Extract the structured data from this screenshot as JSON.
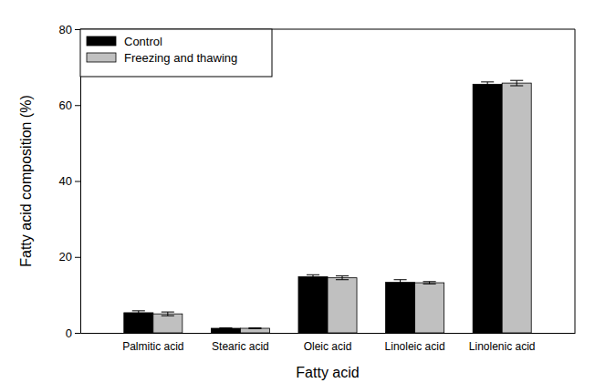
{
  "chart_data": {
    "type": "bar",
    "x_label": "Fatty acid",
    "y_label": "Fatty acid composition (%)",
    "categories": [
      "Palmitic acid",
      "Stearic acid",
      "Oleic acid",
      "Linoleic acid",
      "Linolenic acid"
    ],
    "series": [
      {
        "name": "Control",
        "color": "#000000",
        "values": [
          5.3,
          1.2,
          14.8,
          13.3,
          65.5
        ],
        "errors": [
          0.5,
          0.1,
          0.5,
          0.7,
          0.6
        ]
      },
      {
        "name": "Freezing and thawing",
        "color": "#c0c0c0",
        "values": [
          5.0,
          1.2,
          14.5,
          13.2,
          65.8
        ],
        "errors": [
          0.5,
          0.1,
          0.5,
          0.3,
          0.7
        ]
      }
    ],
    "ylim": [
      0,
      80
    ],
    "yticks": [
      0,
      20,
      40,
      60,
      80
    ],
    "legend": "upper left",
    "grid": false
  }
}
